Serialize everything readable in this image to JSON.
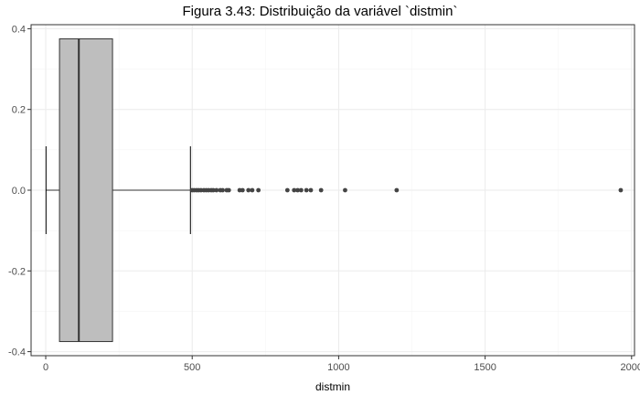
{
  "chart_data": {
    "type": "boxplot",
    "title": "Figura 3.43: Distribuição da variável `distmin`",
    "xlabel": "distmin",
    "ylabel": "",
    "xlim": [
      -50,
      2010
    ],
    "ylim": [
      -0.41,
      0.41
    ],
    "x_ticks": [
      0,
      500,
      1000,
      1500,
      2000
    ],
    "y_ticks": [
      -0.4,
      -0.2,
      0.0,
      0.2,
      0.4
    ],
    "y_tick_labels": [
      "-0.4",
      "-0.2",
      "0.0",
      "0.2",
      "0.4"
    ],
    "grid": true,
    "box": {
      "min": 1,
      "q1": 47,
      "median": 113,
      "q3": 228,
      "whisker_high": 494,
      "half_width": 0.375,
      "fill": "#bebebe",
      "stroke": "#333333"
    },
    "outliers": [
      500,
      507,
      515,
      522,
      530,
      540,
      548,
      556,
      565,
      572,
      583,
      596,
      604,
      618,
      625,
      662,
      672,
      692,
      705,
      726,
      825,
      848,
      860,
      872,
      890,
      905,
      940,
      1022,
      1198,
      1963
    ],
    "colors": {
      "panel_border": "#333333",
      "grid_major": "#ebebeb",
      "grid_minor": "#f5f5f5",
      "outlier": "#444444"
    }
  }
}
